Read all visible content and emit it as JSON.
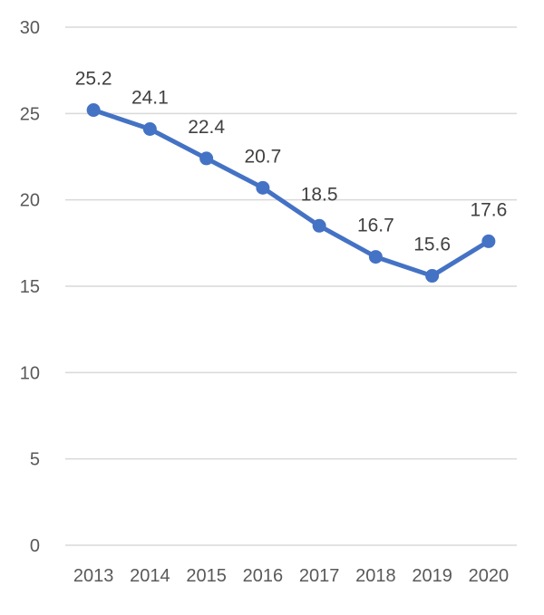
{
  "chart_data": {
    "type": "line",
    "title": "",
    "xlabel": "",
    "ylabel": "",
    "categories": [
      "2013",
      "2014",
      "2015",
      "2016",
      "2017",
      "2018",
      "2019",
      "2020"
    ],
    "series": [
      {
        "values": [
          25.2,
          24.1,
          22.4,
          20.7,
          18.5,
          16.7,
          15.6,
          17.6
        ],
        "color": "#4472c4",
        "data_labels": [
          "25.2",
          "24.1",
          "22.4",
          "20.7",
          "18.5",
          "16.7",
          "15.6",
          "17.6"
        ]
      }
    ],
    "ylim": [
      0,
      30
    ],
    "yticks": [
      0,
      5,
      10,
      15,
      20,
      25,
      30
    ],
    "ytick_labels": [
      "0",
      "5",
      "10",
      "15",
      "20",
      "25",
      "30"
    ],
    "grid": true,
    "legend": "none",
    "gridline_color": "#d9d9d9",
    "tick_label_color": "#595959",
    "data_label_color": "#404040"
  }
}
